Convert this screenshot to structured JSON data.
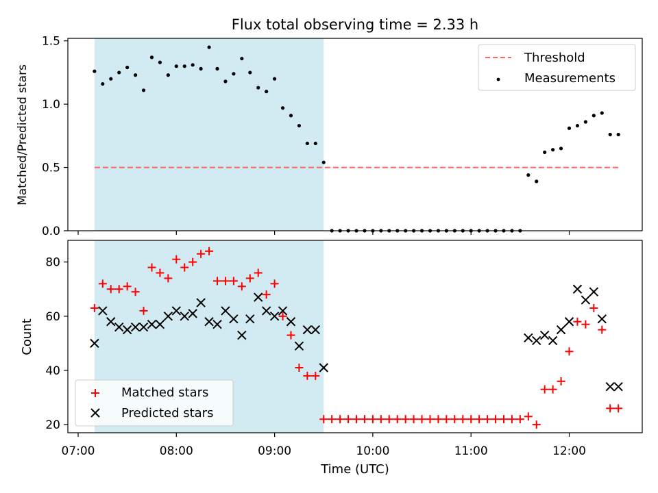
{
  "chart_data": [
    {
      "type": "scatter",
      "title": "Flux total observing time = 2.33 h",
      "xlabel": "",
      "ylabel": "Matched/Predicted stars",
      "ylim": [
        0,
        1.52
      ],
      "yticks": [
        0.0,
        0.5,
        1.0,
        1.5
      ],
      "ytick_labels": [
        "0.0",
        "0.5",
        "1.0",
        "1.5"
      ],
      "grid": false,
      "legend": "top-right",
      "shaded_span": {
        "start": "07:10",
        "end": "09:30",
        "color": "#add8e6"
      },
      "threshold": {
        "name": "Threshold",
        "value": 0.5,
        "start": "07:10",
        "end": "12:30",
        "color": "#ff6666"
      },
      "series": [
        {
          "name": "Measurements",
          "color": "#000000",
          "marker": "dot",
          "x": [
            "07:10",
            "07:15",
            "07:20",
            "07:25",
            "07:30",
            "07:35",
            "07:40",
            "07:45",
            "07:50",
            "07:55",
            "08:00",
            "08:05",
            "08:10",
            "08:15",
            "08:20",
            "08:25",
            "08:30",
            "08:35",
            "08:40",
            "08:45",
            "08:50",
            "08:55",
            "09:00",
            "09:05",
            "09:10",
            "09:15",
            "09:20",
            "09:25",
            "09:30",
            "09:35",
            "09:40",
            "09:45",
            "09:50",
            "09:55",
            "10:00",
            "10:05",
            "10:10",
            "10:15",
            "10:20",
            "10:25",
            "10:30",
            "10:35",
            "10:40",
            "10:45",
            "10:50",
            "10:55",
            "11:00",
            "11:05",
            "11:10",
            "11:15",
            "11:20",
            "11:25",
            "11:30",
            "11:35",
            "11:40",
            "11:45",
            "11:50",
            "11:55",
            "12:00",
            "12:05",
            "12:10",
            "12:15",
            "12:20",
            "12:25",
            "12:30"
          ],
          "y": [
            1.26,
            1.16,
            1.2,
            1.25,
            1.29,
            1.23,
            1.11,
            1.37,
            1.33,
            1.23,
            1.3,
            1.3,
            1.31,
            1.28,
            1.45,
            1.28,
            1.18,
            1.24,
            1.36,
            1.25,
            1.13,
            1.1,
            1.2,
            0.97,
            0.91,
            0.83,
            0.69,
            0.69,
            0.54,
            0,
            0,
            0,
            0,
            0,
            0,
            0,
            0,
            0,
            0,
            0,
            0,
            0,
            0,
            0,
            0,
            0,
            0,
            0,
            0,
            0,
            0,
            0,
            0,
            0.44,
            0.39,
            0.62,
            0.64,
            0.65,
            0.81,
            0.83,
            0.86,
            0.91,
            0.93,
            0.76,
            0.76
          ]
        }
      ],
      "x_hidden_points": []
    },
    {
      "type": "scatter",
      "xlabel": "Time (UTC)",
      "ylabel": "Count",
      "ylim": [
        17,
        88
      ],
      "yticks": [
        20,
        40,
        60,
        80
      ],
      "ytick_labels": [
        "20",
        "40",
        "60",
        "80"
      ],
      "xlim": [
        "07:00",
        "12:50"
      ],
      "xticks": [
        "07:00",
        "08:00",
        "09:00",
        "10:00",
        "11:00",
        "12:00"
      ],
      "xtick_labels": [
        "07:00",
        "08:00",
        "09:00",
        "10:00",
        "11:00",
        "12:00"
      ],
      "grid": false,
      "legend": "bottom-left",
      "shaded_span": {
        "start": "07:10",
        "end": "09:30",
        "color": "#add8e6"
      },
      "series": [
        {
          "name": "Matched stars",
          "color": "#ff0000",
          "marker": "plus",
          "x": [
            "07:10",
            "07:15",
            "07:20",
            "07:25",
            "07:30",
            "07:35",
            "07:40",
            "07:45",
            "07:50",
            "07:55",
            "08:00",
            "08:05",
            "08:10",
            "08:15",
            "08:20",
            "08:25",
            "08:30",
            "08:35",
            "08:40",
            "08:45",
            "08:50",
            "08:55",
            "09:00",
            "09:05",
            "09:10",
            "09:15",
            "09:20",
            "09:25",
            "09:30",
            "09:35",
            "09:40",
            "09:45",
            "09:50",
            "09:55",
            "10:00",
            "10:05",
            "10:10",
            "10:15",
            "10:20",
            "10:25",
            "10:30",
            "10:35",
            "10:40",
            "10:45",
            "10:50",
            "10:55",
            "11:00",
            "11:05",
            "11:10",
            "11:15",
            "11:20",
            "11:25",
            "11:30",
            "11:35",
            "11:40",
            "11:45",
            "11:50",
            "11:55",
            "12:00",
            "12:05",
            "12:10",
            "12:15",
            "12:20",
            "12:25",
            "12:30"
          ],
          "y": [
            63,
            72,
            70,
            70,
            71,
            69,
            62,
            78,
            76,
            74,
            81,
            78,
            80,
            83,
            84,
            73,
            73,
            73,
            71,
            74,
            76,
            68,
            72,
            60,
            53,
            41,
            38,
            38,
            22,
            22,
            22,
            22,
            22,
            22,
            22,
            22,
            22,
            22,
            22,
            22,
            22,
            22,
            22,
            22,
            22,
            22,
            22,
            22,
            22,
            22,
            22,
            22,
            22,
            23,
            20,
            33,
            33,
            36,
            47,
            58,
            57,
            63,
            55,
            26,
            26
          ]
        },
        {
          "name": "Predicted stars",
          "color": "#000000",
          "marker": "x",
          "x": [
            "07:10",
            "07:15",
            "07:20",
            "07:25",
            "07:30",
            "07:35",
            "07:40",
            "07:45",
            "07:50",
            "07:55",
            "08:00",
            "08:05",
            "08:10",
            "08:15",
            "08:20",
            "08:25",
            "08:30",
            "08:35",
            "08:40",
            "08:45",
            "08:50",
            "08:55",
            "09:00",
            "09:05",
            "09:10",
            "09:15",
            "09:20",
            "09:25",
            "09:30",
            "11:35",
            "11:40",
            "11:45",
            "11:50",
            "11:55",
            "12:00",
            "12:05",
            "12:10",
            "12:15",
            "12:20",
            "12:25",
            "12:30"
          ],
          "y": [
            50,
            62,
            58,
            56,
            55,
            56,
            56,
            57,
            57,
            60,
            62,
            60,
            61,
            65,
            58,
            57,
            62,
            59,
            53,
            59,
            67,
            62,
            60,
            62,
            58,
            49,
            55,
            55,
            41,
            52,
            51,
            53,
            51,
            55,
            58,
            70,
            66,
            69,
            59,
            34,
            34
          ]
        }
      ]
    }
  ]
}
